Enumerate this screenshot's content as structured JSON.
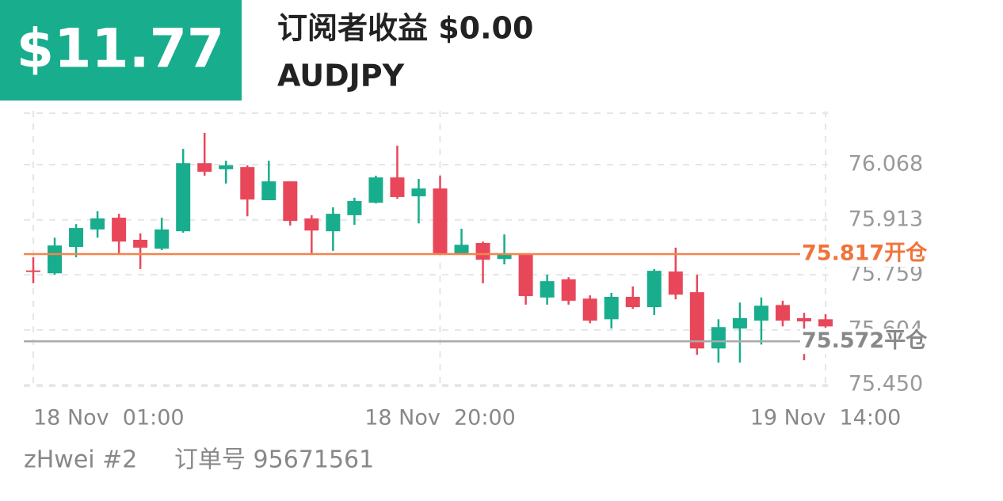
{
  "header": {
    "profit": "$11.77",
    "title": "订阅者收益 $0.00",
    "symbol": "AUDJPY"
  },
  "footer": {
    "account": "zHwei #2",
    "order": "订单号 95671561"
  },
  "chart_data": {
    "type": "candlestick",
    "categories": [
      "18 Nov  01:00",
      null,
      null,
      null,
      null,
      null,
      null,
      null,
      null,
      null,
      null,
      null,
      null,
      null,
      null,
      null,
      null,
      null,
      null,
      "18 Nov  20:00",
      null,
      null,
      null,
      null,
      null,
      null,
      null,
      null,
      null,
      null,
      null,
      null,
      null,
      null,
      null,
      null,
      null,
      "19 Nov  14:00"
    ],
    "open": [
      75.771,
      75.763,
      75.837,
      75.886,
      75.919,
      75.857,
      75.832,
      75.881,
      76.072,
      76.055,
      76.061,
      75.968,
      76.021,
      75.917,
      75.881,
      75.926,
      75.961,
      76.032,
      75.979,
      76.001,
      75.819,
      75.848,
      75.803,
      75.815,
      75.695,
      75.746,
      75.692,
      75.634,
      75.697,
      75.668,
      75.768,
      75.71,
      75.552,
      75.608,
      75.63,
      75.674,
      75.637,
      75.634
    ],
    "high": [
      75.808,
      75.863,
      75.901,
      75.937,
      75.93,
      75.875,
      75.919,
      76.112,
      76.157,
      76.079,
      76.066,
      76.079,
      76.021,
      75.926,
      75.948,
      75.975,
      76.037,
      76.121,
      76.028,
      76.037,
      75.888,
      75.852,
      75.872,
      75.815,
      75.759,
      75.752,
      75.701,
      75.708,
      75.726,
      75.775,
      75.835,
      75.759,
      75.634,
      75.681,
      75.695,
      75.686,
      75.652,
      75.648
    ],
    "low": [
      75.735,
      75.759,
      75.808,
      75.863,
      75.819,
      75.775,
      75.828,
      75.877,
      76.037,
      76.015,
      75.923,
      75.968,
      75.897,
      75.815,
      75.826,
      75.899,
      75.959,
      75.972,
      75.903,
      75.819,
      75.819,
      75.735,
      75.788,
      75.675,
      75.675,
      75.675,
      75.623,
      75.608,
      75.663,
      75.646,
      75.69,
      75.534,
      75.512,
      75.512,
      75.563,
      75.614,
      75.519,
      75.61
    ],
    "close": [
      75.77,
      75.841,
      75.89,
      75.917,
      75.852,
      75.835,
      75.886,
      76.072,
      76.048,
      76.066,
      75.97,
      76.021,
      75.91,
      75.883,
      75.93,
      75.966,
      76.032,
      75.977,
      76.001,
      75.819,
      75.843,
      75.801,
      75.815,
      75.699,
      75.741,
      75.686,
      75.63,
      75.697,
      75.668,
      75.77,
      75.703,
      75.552,
      75.612,
      75.637,
      75.672,
      75.63,
      75.628,
      75.614
    ],
    "up_color": "#18ad8c",
    "down_color": "#e8475a",
    "ylim": [
      75.446,
      76.219
    ],
    "yticks": [
      {
        "value": 75.45,
        "label": "75.450"
      },
      75.604,
      75.759,
      75.913,
      76.068
    ],
    "grid": true,
    "reference_lines": [
      {
        "value": 75.817,
        "label": "75.817开仓",
        "color": "#f4844c",
        "label_color": "#f0733a"
      },
      {
        "value": 75.572,
        "label": "75.572平仓",
        "color": "#aaaaaa",
        "label_color": "#888888"
      }
    ]
  }
}
